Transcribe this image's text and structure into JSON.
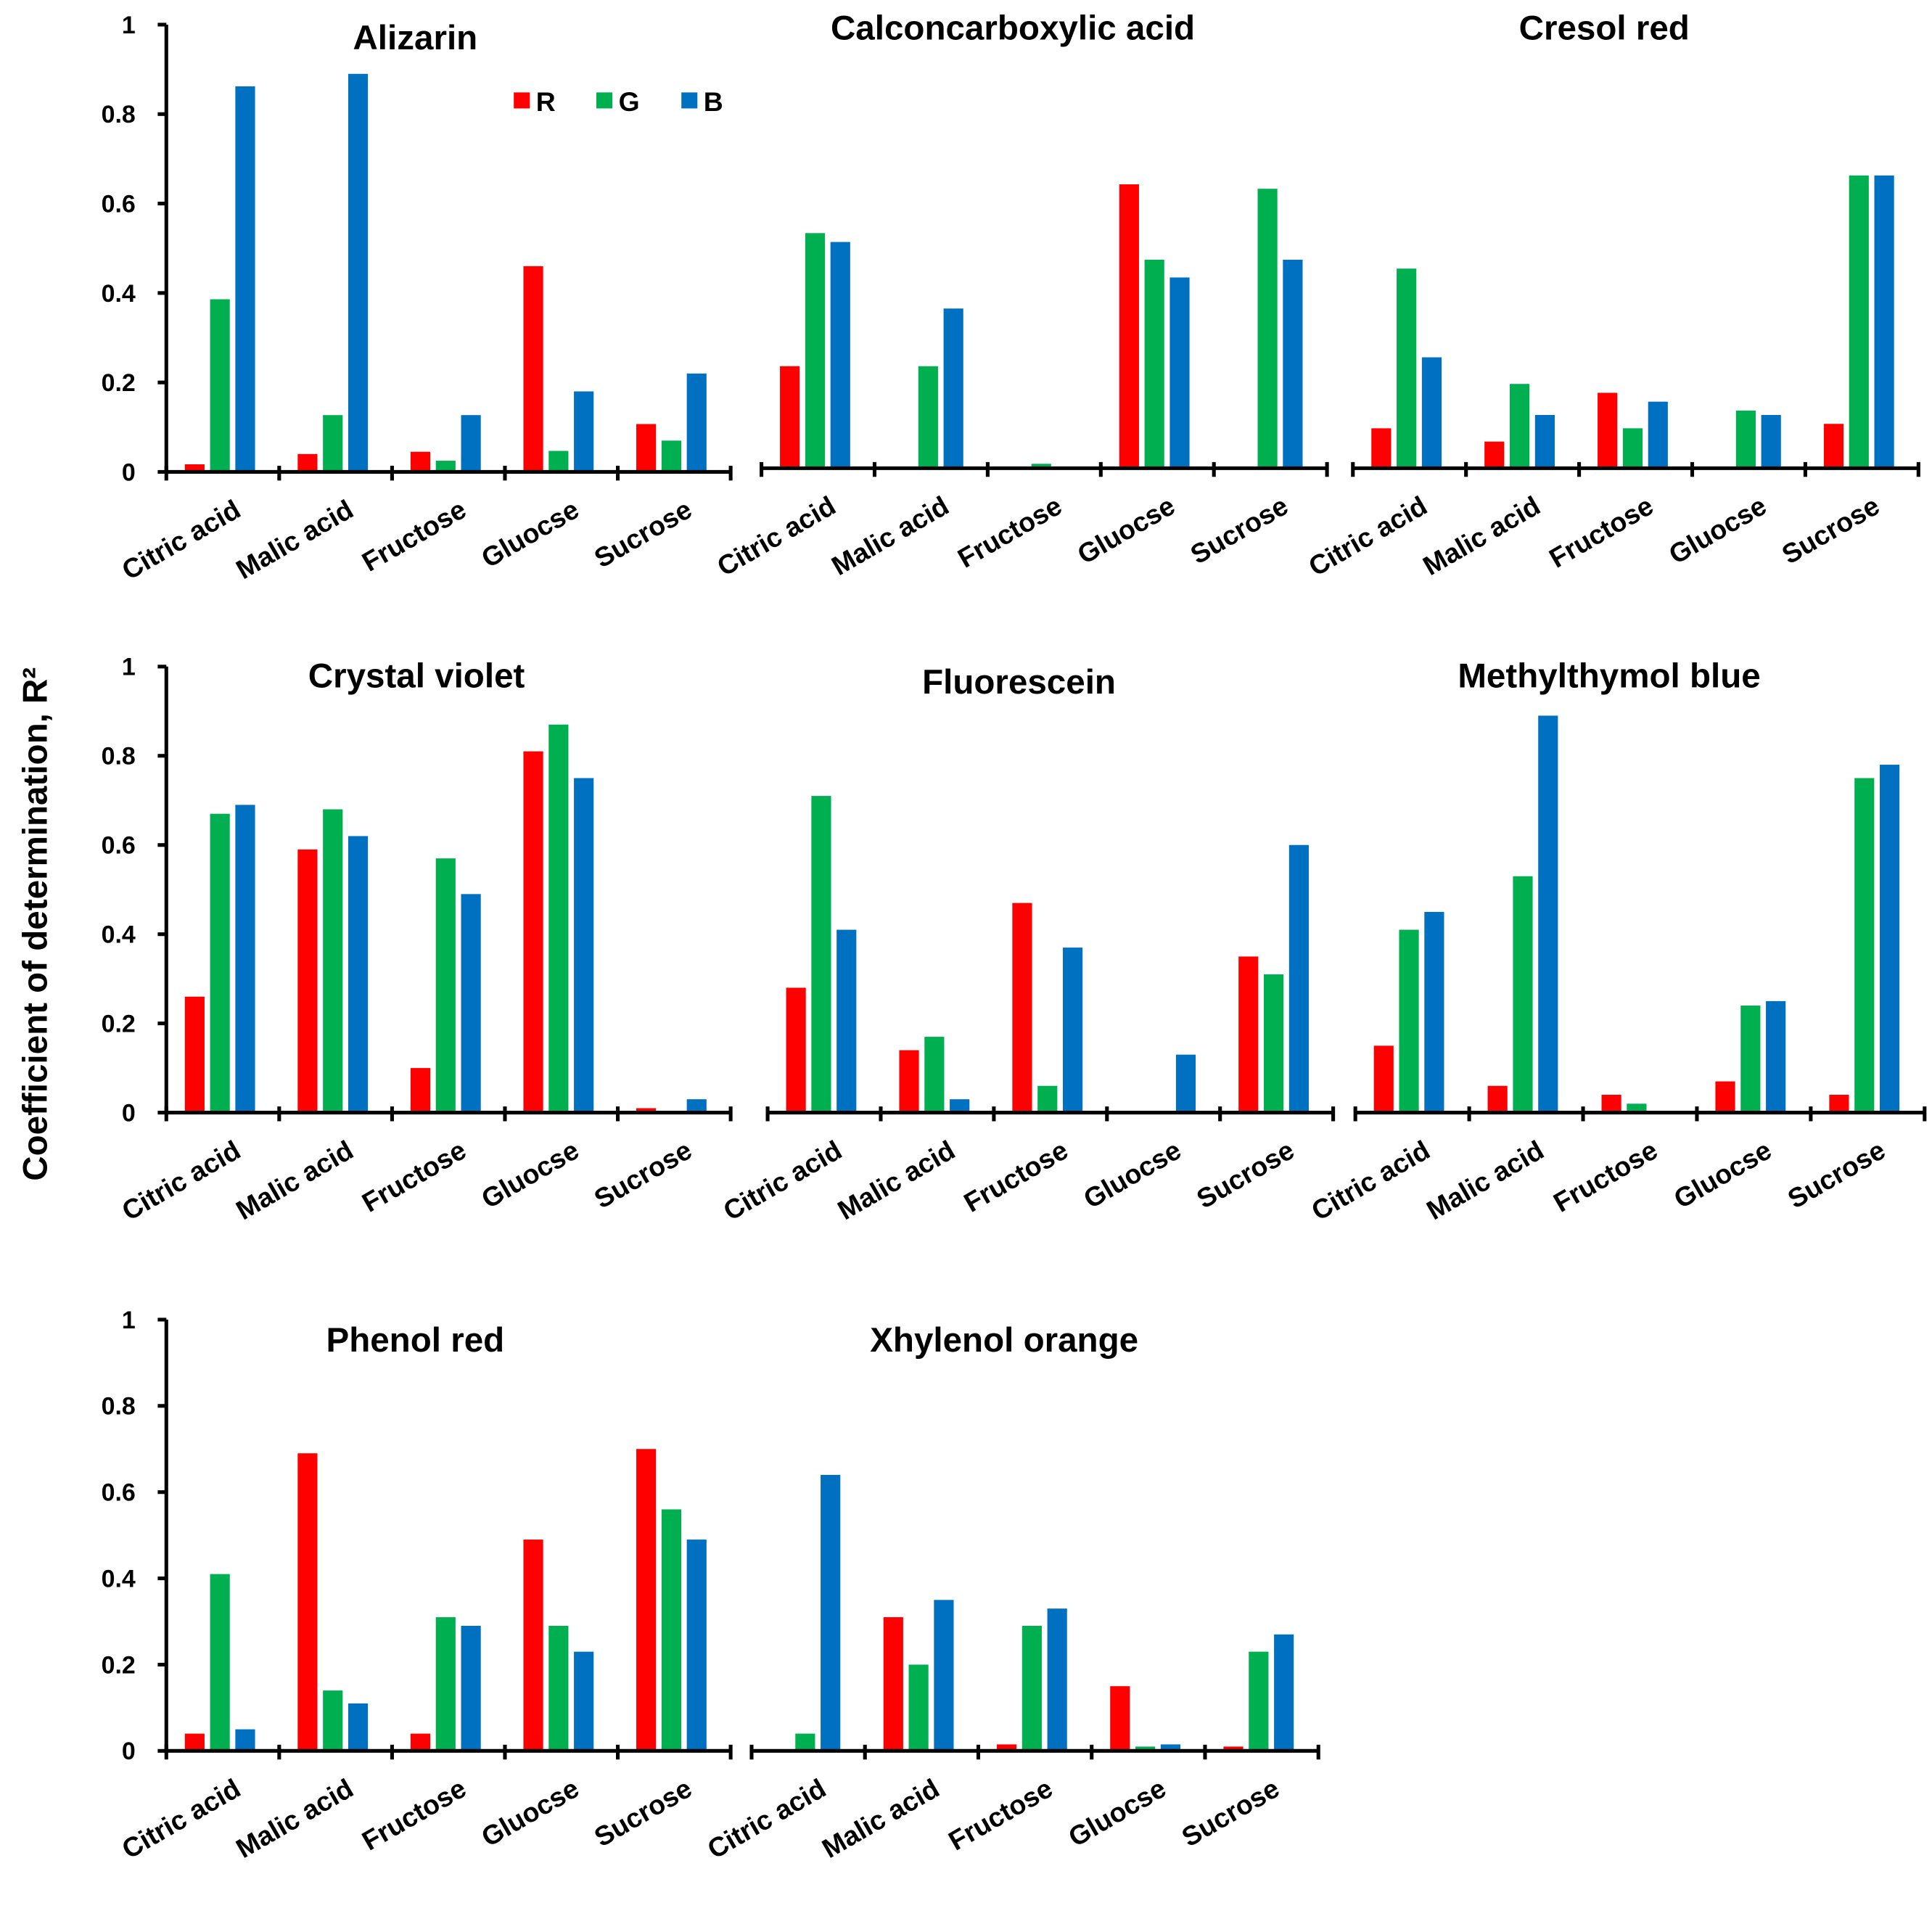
{
  "chart_data": {
    "type": "bar",
    "ylabel": "Coefficient of determination, R²",
    "ylim": [
      0,
      1
    ],
    "yticks": [
      "0",
      "0.2",
      "0.4",
      "0.6",
      "0.8",
      "1"
    ],
    "categories": [
      "Citric acid",
      "Malic acid",
      "Fructose",
      "Gluocse",
      "Sucrose"
    ],
    "legend": [
      {
        "name": "R",
        "color": "#ff0000"
      },
      {
        "name": "G",
        "color": "#00b050"
      },
      {
        "name": "B",
        "color": "#0070c0"
      }
    ],
    "legend_placement": "top-right of first panel",
    "panels": [
      {
        "title": "Alizarin",
        "series": [
          {
            "name": "R",
            "values": [
              0.017,
              0.04,
              0.045,
              0.46,
              0.107
            ]
          },
          {
            "name": "G",
            "values": [
              0.386,
              0.127,
              0.025,
              0.047,
              0.07
            ]
          },
          {
            "name": "B",
            "values": [
              0.862,
              0.89,
              0.127,
              0.18,
              0.22
            ]
          }
        ]
      },
      {
        "title": "Calconcarboxylic acid",
        "series": [
          {
            "name": "R",
            "values": [
              0.23,
              0,
              0,
              0.64,
              0
            ]
          },
          {
            "name": "G",
            "values": [
              0.53,
              0.23,
              0.01,
              0.47,
              0.63
            ]
          },
          {
            "name": "B",
            "values": [
              0.51,
              0.36,
              0,
              0.43,
              0.47
            ]
          }
        ]
      },
      {
        "title": "Cresol red",
        "series": [
          {
            "name": "R",
            "values": [
              0.09,
              0.06,
              0.17,
              0,
              0.1
            ]
          },
          {
            "name": "G",
            "values": [
              0.45,
              0.19,
              0.09,
              0.13,
              0.66
            ]
          },
          {
            "name": "B",
            "values": [
              0.25,
              0.12,
              0.15,
              0.12,
              0.66
            ]
          }
        ]
      },
      {
        "title": "Crystal violet",
        "series": [
          {
            "name": "R",
            "values": [
              0.26,
              0.59,
              0.1,
              0.81,
              0.01
            ]
          },
          {
            "name": "G",
            "values": [
              0.67,
              0.68,
              0.57,
              0.87,
              0
            ]
          },
          {
            "name": "B",
            "values": [
              0.69,
              0.62,
              0.49,
              0.75,
              0.03
            ]
          }
        ]
      },
      {
        "title": "Fluorescein",
        "series": [
          {
            "name": "R",
            "values": [
              0.28,
              0.14,
              0.47,
              0,
              0.35
            ]
          },
          {
            "name": "G",
            "values": [
              0.71,
              0.17,
              0.06,
              0,
              0.31
            ]
          },
          {
            "name": "B",
            "values": [
              0.41,
              0.03,
              0.37,
              0.13,
              0.6
            ]
          }
        ]
      },
      {
        "title": "Methylthymol blue",
        "series": [
          {
            "name": "R",
            "values": [
              0.15,
              0.06,
              0.04,
              0.07,
              0.04
            ]
          },
          {
            "name": "G",
            "values": [
              0.41,
              0.53,
              0.02,
              0.24,
              0.75
            ]
          },
          {
            "name": "B",
            "values": [
              0.45,
              0.89,
              0,
              0.25,
              0.78
            ]
          }
        ]
      },
      {
        "title": "Phenol red",
        "series": [
          {
            "name": "R",
            "values": [
              0.04,
              0.69,
              0.04,
              0.49,
              0.7
            ]
          },
          {
            "name": "G",
            "values": [
              0.41,
              0.14,
              0.31,
              0.29,
              0.56
            ]
          },
          {
            "name": "B",
            "values": [
              0.05,
              0.11,
              0.29,
              0.23,
              0.49
            ]
          }
        ]
      },
      {
        "title": "Xhylenol orange",
        "series": [
          {
            "name": "R",
            "values": [
              0,
              0.31,
              0.015,
              0.15,
              0.01
            ]
          },
          {
            "name": "G",
            "values": [
              0.04,
              0.2,
              0.29,
              0.01,
              0.23
            ]
          },
          {
            "name": "B",
            "values": [
              0.64,
              0.35,
              0.33,
              0.015,
              0.27
            ]
          }
        ]
      }
    ]
  }
}
